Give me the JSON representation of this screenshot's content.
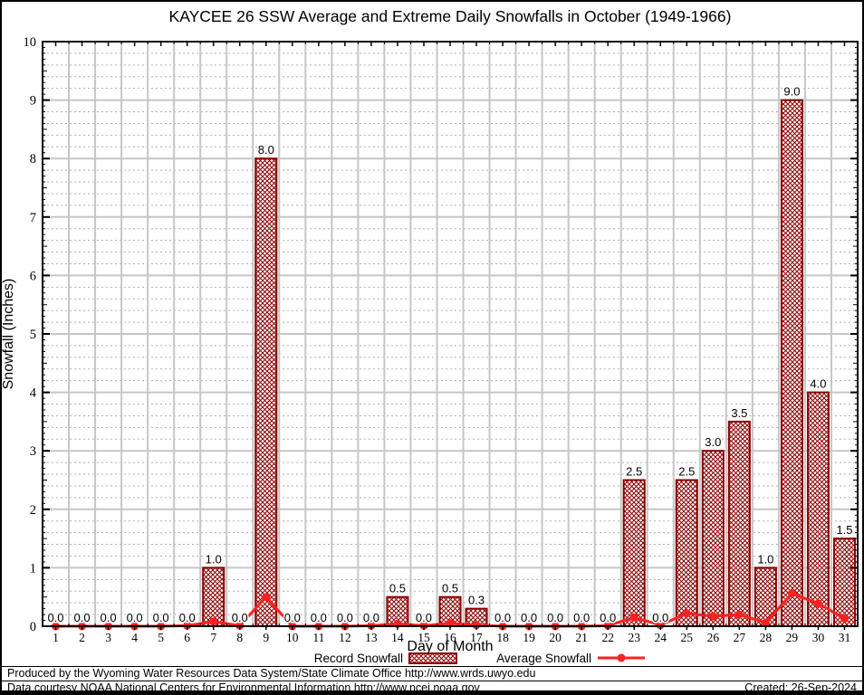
{
  "title": "KAYCEE 26 SSW Average and Extreme Daily Snowfalls in October (1949-1966)",
  "footer": {
    "line1": "Produced by the Wyoming Water Resources Data System/State Climate Office http://www.wrds.uwyo.edu",
    "line2": "Data courtesy NOAA National Centers for Environmental Information http://www.ncei.noaa.gov",
    "created": "Created: 26-Sep-2024"
  },
  "colors": {
    "bar_border": "#8b0000",
    "bar_hatch": "#8b0000",
    "line": "#ff2020",
    "grid_major": "#c6c6c6",
    "grid_minor": "#b0b0b0",
    "axis": "#000000"
  },
  "chart_data": {
    "type": "bar",
    "title": "KAYCEE 26 SSW Average and Extreme Daily Snowfalls in October (1949-1966)",
    "xlabel": "Day of Month",
    "ylabel": "Snowfall (Inches)",
    "ylim": [
      0,
      10
    ],
    "y_major_step": 1,
    "y_minor_step": 0.2,
    "grid": true,
    "legend_position": "bottom",
    "categories": [
      1,
      2,
      3,
      4,
      5,
      6,
      7,
      8,
      9,
      10,
      11,
      12,
      13,
      14,
      15,
      16,
      17,
      18,
      19,
      20,
      21,
      22,
      23,
      24,
      25,
      26,
      27,
      28,
      29,
      30,
      31
    ],
    "series": [
      {
        "name": "Record Snowfall",
        "type": "bar",
        "values": [
          0,
          0,
          0,
          0,
          0,
          0,
          1.0,
          0,
          8.0,
          0,
          0,
          0,
          0,
          0.5,
          0,
          0.5,
          0.3,
          0,
          0,
          0,
          0,
          0,
          2.5,
          0,
          2.5,
          3.0,
          3.5,
          1.0,
          9.0,
          4.0,
          1.5
        ],
        "labels": [
          "0.0",
          "0.0",
          "0.0",
          "0.0",
          "0.0",
          "0.0",
          "1.0",
          "0.0",
          "8.0",
          "0.0",
          "0.0",
          "0.0",
          "0.0",
          "0.5",
          "0.0",
          "0.5",
          "0.3",
          "0.0",
          "0.0",
          "0.0",
          "0.0",
          "0.0",
          "2.5",
          "0.0",
          "2.5",
          "3.0",
          "3.5",
          "1.0",
          "9.0",
          "4.0",
          "1.5"
        ]
      },
      {
        "name": "Average Snowfall",
        "type": "line",
        "values": [
          0,
          0,
          0,
          0,
          0,
          0.01,
          0.08,
          0.01,
          0.5,
          0,
          0,
          0,
          0.01,
          0.04,
          0.01,
          0.05,
          0.02,
          0,
          0,
          0,
          0,
          0.01,
          0.15,
          0.02,
          0.22,
          0.17,
          0.2,
          0.06,
          0.56,
          0.39,
          0.13
        ]
      }
    ]
  }
}
